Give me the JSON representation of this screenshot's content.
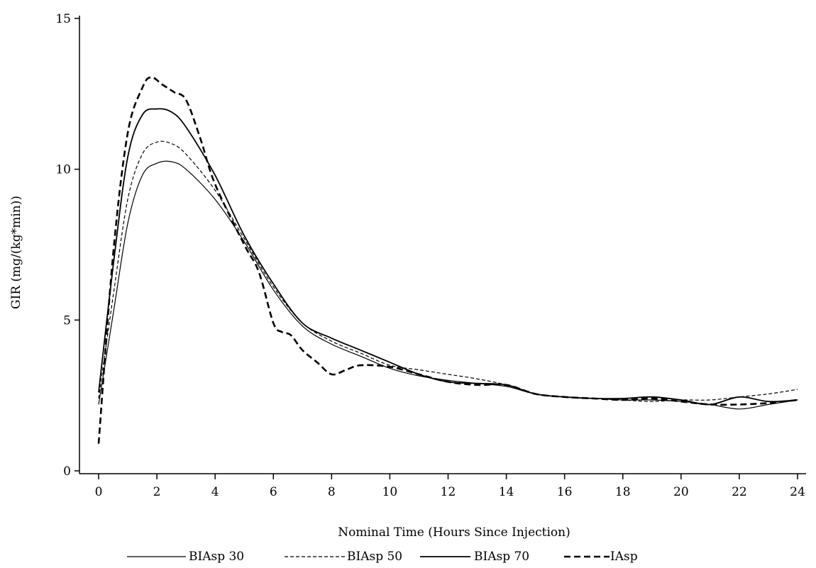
{
  "chart_data": {
    "type": "line",
    "xlabel": "Nominal Time (Hours Since Injection)",
    "ylabel": "GIR (mg/(kg*min))",
    "xlim": [
      0,
      24
    ],
    "ylim": [
      0,
      15
    ],
    "xticks": [
      0,
      2,
      4,
      6,
      8,
      10,
      12,
      14,
      16,
      18,
      20,
      22,
      24
    ],
    "yticks": [
      0,
      5,
      10,
      15
    ],
    "grid": false,
    "legend_position": "bottom",
    "series": [
      {
        "name": "BIAsp 30",
        "style": "solid-thin",
        "x": [
          0,
          0.5,
          1,
          1.5,
          2,
          2.5,
          3,
          4,
          5,
          6,
          7,
          8,
          9,
          10,
          11,
          12,
          13,
          14,
          15,
          16,
          17,
          18,
          19,
          20,
          21,
          22,
          23,
          24
        ],
        "y": [
          2.2,
          5.2,
          8.2,
          9.8,
          10.2,
          10.25,
          10.0,
          9.0,
          7.6,
          6.0,
          4.8,
          4.2,
          3.8,
          3.4,
          3.15,
          3.0,
          2.9,
          2.8,
          2.55,
          2.45,
          2.4,
          2.35,
          2.35,
          2.3,
          2.2,
          2.05,
          2.2,
          2.35
        ]
      },
      {
        "name": "BIAsp 50",
        "style": "dashed-thin",
        "x": [
          0,
          0.5,
          1,
          1.5,
          2,
          2.5,
          3,
          4,
          5,
          6,
          7,
          8,
          9,
          10,
          11,
          12,
          13,
          14,
          15,
          16,
          17,
          18,
          19,
          20,
          21,
          22,
          23,
          24
        ],
        "y": [
          2.4,
          5.8,
          9.0,
          10.5,
          10.9,
          10.85,
          10.5,
          9.3,
          7.7,
          6.1,
          4.9,
          4.3,
          3.9,
          3.5,
          3.35,
          3.2,
          3.05,
          2.85,
          2.55,
          2.45,
          2.4,
          2.35,
          2.3,
          2.35,
          2.35,
          2.45,
          2.55,
          2.7
        ]
      },
      {
        "name": "BIAsp 70",
        "style": "solid-medium",
        "x": [
          0,
          0.5,
          1,
          1.5,
          2,
          2.5,
          3,
          4,
          5,
          6,
          7,
          8,
          9,
          10,
          11,
          12,
          13,
          14,
          15,
          16,
          17,
          18,
          19,
          20,
          21,
          22,
          23,
          24
        ],
        "y": [
          2.6,
          6.8,
          10.4,
          11.8,
          12.0,
          11.9,
          11.4,
          9.8,
          7.8,
          6.2,
          4.9,
          4.4,
          4.0,
          3.6,
          3.2,
          2.95,
          2.9,
          2.85,
          2.55,
          2.45,
          2.4,
          2.4,
          2.45,
          2.35,
          2.2,
          2.45,
          2.3,
          2.35
        ]
      },
      {
        "name": "IAsp",
        "style": "dashed-bold",
        "x": [
          0,
          0.5,
          1,
          1.5,
          1.8,
          2.2,
          2.6,
          3,
          3.5,
          4,
          5,
          5.5,
          6,
          6.3,
          6.6,
          7,
          7.5,
          8,
          8.5,
          9,
          10,
          11,
          12,
          13,
          14,
          15,
          16,
          17,
          18,
          19,
          20,
          21,
          22,
          23,
          24
        ],
        "y": [
          0.9,
          7.2,
          11.2,
          12.7,
          13.05,
          12.8,
          12.55,
          12.3,
          11.0,
          9.5,
          7.5,
          6.6,
          4.9,
          4.6,
          4.5,
          4.0,
          3.6,
          3.2,
          3.35,
          3.5,
          3.45,
          3.2,
          2.95,
          2.85,
          2.85,
          2.55,
          2.45,
          2.4,
          2.35,
          2.4,
          2.3,
          2.2,
          2.2,
          2.25,
          2.35
        ]
      }
    ],
    "y_tick_labels": [
      "0",
      "5",
      "10",
      "15"
    ],
    "x_tick_labels": [
      "0",
      "2",
      "4",
      "6",
      "8",
      "10",
      "12",
      "14",
      "16",
      "18",
      "20",
      "22",
      "24"
    ]
  }
}
